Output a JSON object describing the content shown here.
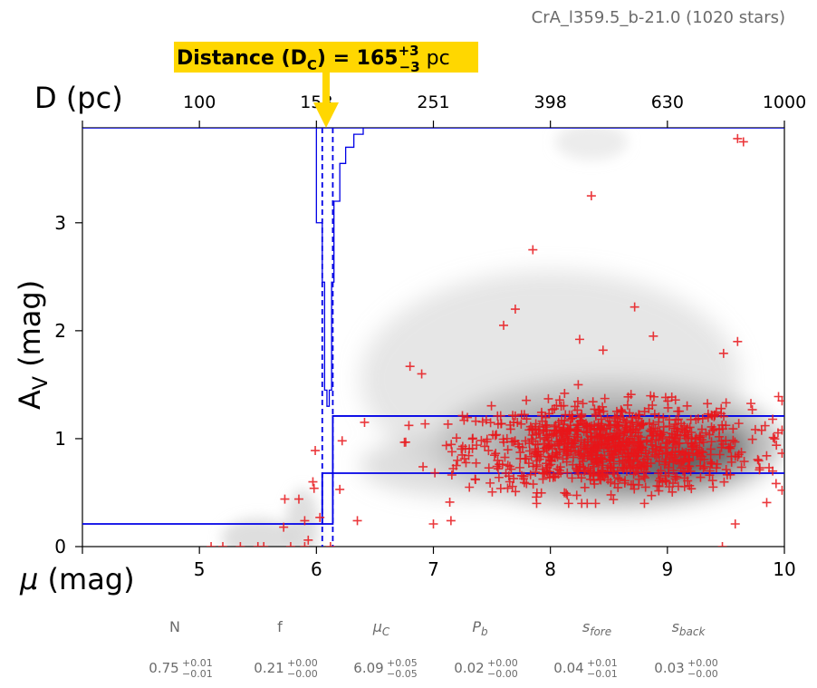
{
  "header": {
    "title": "CrA_l359.5_b-21.0 (1020 stars)"
  },
  "banner": {
    "label": "Distance (D",
    "sub": "C",
    "mid": ") = 165",
    "sup_err": "+3",
    "sub_err": "−3",
    "unit": " pc",
    "color": "#FFD700"
  },
  "chart_data": {
    "type": "scatter",
    "title": "CrA_l359.5_b-21.0 (1020 stars)",
    "xlabel": "μ (mag)",
    "ylabel": "A_V (mag)",
    "top_xlabel": "D (pc)",
    "xlim": [
      4.0,
      10.0
    ],
    "ylim": [
      0.0,
      3.88
    ],
    "x_ticks": [
      5,
      6,
      7,
      8,
      9,
      10
    ],
    "y_ticks": [
      0,
      1,
      2,
      3
    ],
    "top_ticks": [
      {
        "mu": 5.0,
        "label": "100"
      },
      {
        "mu": 6.0,
        "label": "158"
      },
      {
        "mu": 7.0,
        "label": "251"
      },
      {
        "mu": 8.0,
        "label": "398"
      },
      {
        "mu": 9.0,
        "label": "630"
      },
      {
        "mu": 10.0,
        "label": "1000"
      }
    ],
    "distance_pc": 165,
    "distance_err": [
      3,
      3
    ],
    "mu_c": 6.09,
    "mu_c_bounds": [
      6.05,
      6.14
    ],
    "foreground_extinction": 0.21,
    "background_extinction_band": [
      0.68,
      1.21
    ],
    "grid": false,
    "marker_color": "#E8161A",
    "model_line_color": "#0000E6",
    "outlier_points": [
      [
        5.1,
        0.0
      ],
      [
        5.2,
        0.0
      ],
      [
        5.35,
        0.0
      ],
      [
        5.5,
        0.0
      ],
      [
        5.55,
        0.0
      ],
      [
        5.72,
        0.18
      ],
      [
        5.78,
        0.0
      ],
      [
        5.73,
        0.44
      ],
      [
        5.85,
        0.44
      ],
      [
        5.9,
        0.0
      ],
      [
        5.93,
        0.06
      ],
      [
        5.9,
        0.24
      ],
      [
        5.97,
        0.6
      ],
      [
        5.98,
        0.54
      ],
      [
        5.99,
        0.89
      ],
      [
        6.03,
        0.27
      ],
      [
        6.12,
        0.0
      ],
      [
        6.2,
        0.53
      ],
      [
        6.22,
        0.98
      ],
      [
        6.35,
        0.24
      ],
      [
        6.8,
        1.67
      ],
      [
        6.9,
        1.6
      ],
      [
        7.0,
        0.21
      ],
      [
        7.15,
        0.24
      ],
      [
        7.6,
        2.05
      ],
      [
        7.7,
        2.2
      ],
      [
        7.85,
        2.75
      ],
      [
        8.35,
        3.25
      ],
      [
        8.25,
        1.92
      ],
      [
        8.45,
        1.82
      ],
      [
        8.72,
        2.22
      ],
      [
        8.88,
        1.95
      ],
      [
        9.48,
        1.79
      ],
      [
        9.6,
        1.9
      ],
      [
        9.6,
        3.78
      ],
      [
        9.65,
        3.75
      ],
      [
        9.58,
        0.21
      ],
      [
        9.47,
        0.0
      ],
      [
        9.9,
        0.7
      ],
      [
        9.98,
        1.35
      ],
      [
        9.95,
        1.39
      ],
      [
        9.9,
        1.18
      ]
    ],
    "cloud_distribution": {
      "count": 978,
      "mu_mean": 8.5,
      "mu_sd": 0.6,
      "mu_range": [
        6.1,
        9.98
      ],
      "av_mean": 0.92,
      "av_sd": 0.2,
      "av_range": [
        0.4,
        1.5
      ]
    },
    "distance_pdf_steps": [
      [
        6.0,
        3.88
      ],
      [
        6.0,
        3.0
      ],
      [
        6.05,
        3.0
      ],
      [
        6.05,
        2.45
      ],
      [
        6.07,
        2.45
      ],
      [
        6.07,
        1.45
      ],
      [
        6.09,
        1.45
      ],
      [
        6.09,
        1.3
      ],
      [
        6.11,
        1.3
      ],
      [
        6.11,
        1.45
      ],
      [
        6.13,
        1.45
      ],
      [
        6.13,
        2.45
      ],
      [
        6.15,
        2.45
      ],
      [
        6.15,
        3.2
      ],
      [
        6.2,
        3.2
      ],
      [
        6.2,
        3.55
      ],
      [
        6.25,
        3.55
      ],
      [
        6.25,
        3.7
      ],
      [
        6.32,
        3.7
      ],
      [
        6.32,
        3.82
      ],
      [
        6.4,
        3.82
      ],
      [
        6.4,
        3.88
      ]
    ]
  },
  "params": {
    "names": [
      "N",
      "f",
      "μ",
      "P",
      "s",
      "s"
    ],
    "name_subs": [
      "",
      "",
      "C",
      "b",
      "fore",
      "back"
    ],
    "values": [
      "0.75",
      "0.21",
      "6.09",
      "0.02",
      "0.04",
      "0.03"
    ],
    "err_plus": [
      "+0.01",
      "+0.00",
      "+0.05",
      "+0.00",
      "+0.01",
      "+0.00"
    ],
    "err_minus": [
      "−0.01",
      "−0.00",
      "−0.05",
      "−0.00",
      "−0.01",
      "−0.00"
    ]
  }
}
